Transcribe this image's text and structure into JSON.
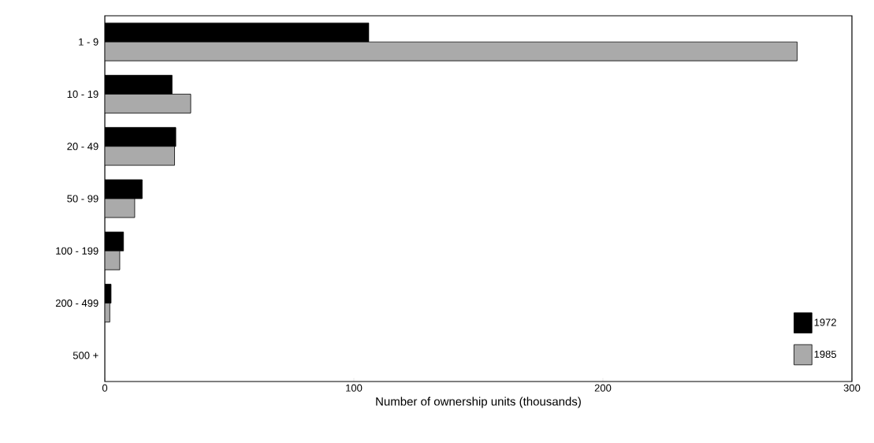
{
  "chart_data": {
    "type": "bar",
    "orientation": "horizontal",
    "categories": [
      "1 -   9",
      "10 -  19",
      "20 -  49",
      "50 -  99",
      "100 - 199",
      "200 - 499",
      "500 +"
    ],
    "xlabel": "Number of ownership units (thousands)",
    "xlim": [
      0,
      300
    ],
    "xticks": [
      0,
      100,
      200,
      300
    ],
    "legend": "bottom right",
    "series": [
      {
        "name": "1972",
        "color": "#000000",
        "values": [
          106,
          27,
          28.5,
          15,
          7.5,
          2.5,
          null
        ]
      },
      {
        "name": "1985",
        "color": "#aaaaaa",
        "values": [
          278,
          34.5,
          28,
          12,
          6,
          2,
          null
        ]
      }
    ]
  }
}
